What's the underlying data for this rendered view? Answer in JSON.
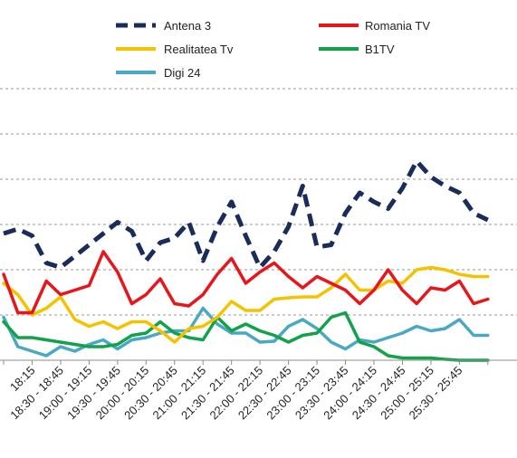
{
  "chart_data": {
    "type": "line",
    "title": "",
    "xlabel": "",
    "ylabel": "",
    "ylim": [
      0,
      6
    ],
    "grid": true,
    "legend_position": "top",
    "categories": [
      "",
      "",
      "18:15",
      "",
      "18:30 - 18:45",
      "",
      "19:00 - 19:15",
      "",
      "19:30 - 19:45",
      "",
      "20:00 - 20:15",
      "",
      "20:30 - 20:45",
      "",
      "21:00 - 21:15",
      "",
      "21:30 - 21:45",
      "",
      "22:00 - 22:15",
      "",
      "22:30 - 22:45",
      "",
      "23:00 - 23:15",
      "",
      "23:30 - 23:45",
      "",
      "24:00 - 24:15",
      "",
      "24:30 - 24:45",
      "",
      "25:00 - 25:15",
      "",
      "25:30 - 25:45",
      "",
      ""
    ],
    "series": [
      {
        "name": "Antena 3",
        "color": "#1a2d5a",
        "dashed": true,
        "values": [
          2.8,
          2.9,
          2.75,
          2.15,
          2.05,
          2.3,
          2.55,
          2.8,
          3.05,
          2.85,
          2.2,
          2.6,
          2.7,
          3.05,
          2.2,
          2.95,
          3.5,
          2.75,
          2.05,
          2.4,
          2.95,
          3.85,
          2.5,
          2.55,
          3.25,
          3.7,
          3.5,
          3.35,
          3.8,
          4.4,
          4.05,
          3.85,
          3.7,
          3.25,
          3.1
        ]
      },
      {
        "name": "Romania TV",
        "color": "#e8151b",
        "dashed": false,
        "values": [
          1.9,
          1.05,
          1.05,
          1.75,
          1.45,
          1.55,
          1.65,
          2.4,
          1.95,
          1.25,
          1.45,
          1.8,
          1.25,
          1.2,
          1.45,
          1.9,
          2.25,
          1.7,
          1.95,
          2.15,
          1.85,
          1.6,
          1.85,
          1.7,
          1.55,
          1.25,
          1.55,
          2.0,
          1.55,
          1.25,
          1.6,
          1.55,
          1.75,
          1.25,
          1.35
        ]
      },
      {
        "name": "Realitatea Tv",
        "color": "#f5c200",
        "dashed": false,
        "values": [
          1.7,
          1.45,
          1.0,
          1.15,
          1.4,
          0.9,
          0.75,
          0.85,
          0.7,
          0.85,
          0.85,
          0.65,
          0.4,
          0.7,
          0.75,
          0.95,
          1.3,
          1.1,
          1.1,
          1.35,
          1.38,
          1.4,
          1.4,
          1.6,
          1.9,
          1.55,
          1.55,
          1.75,
          1.7,
          2.0,
          2.05,
          2.0,
          1.9,
          1.85,
          1.85
        ]
      },
      {
        "name": "B1TV",
        "color": "#13a24a",
        "dashed": false,
        "values": [
          0.85,
          0.5,
          0.5,
          0.45,
          0.4,
          0.35,
          0.3,
          0.3,
          0.35,
          0.55,
          0.6,
          0.85,
          0.6,
          0.5,
          0.45,
          0.95,
          0.65,
          0.8,
          0.65,
          0.55,
          0.4,
          0.55,
          0.6,
          0.95,
          1.05,
          0.4,
          0.3,
          0.1,
          0.05,
          0.05,
          0.05,
          0.02,
          0.0,
          0.0,
          0.0
        ]
      },
      {
        "name": "Digi 24",
        "color": "#4aa9c2",
        "dashed": false,
        "values": [
          0.95,
          0.3,
          0.2,
          0.1,
          0.3,
          0.2,
          0.35,
          0.45,
          0.25,
          0.45,
          0.5,
          0.6,
          0.65,
          0.65,
          1.15,
          0.8,
          0.6,
          0.6,
          0.4,
          0.42,
          0.75,
          0.9,
          0.7,
          0.4,
          0.25,
          0.45,
          0.4,
          0.5,
          0.6,
          0.75,
          0.65,
          0.7,
          0.9,
          0.55,
          0.55
        ]
      }
    ]
  }
}
